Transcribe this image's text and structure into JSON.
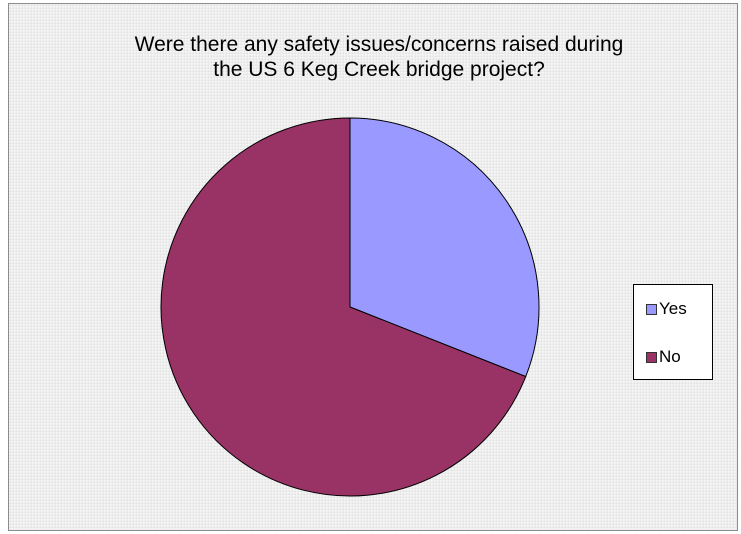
{
  "chart_data": {
    "type": "pie",
    "title": "Were there any safety issues/concerns raised during the US 6 Keg Creek bridge project?",
    "title_lines": [
      "Were there any safety issues/concerns raised during",
      "the US 6 Keg Creek bridge project?"
    ],
    "categories": [
      "Yes",
      "No"
    ],
    "values": [
      31,
      69
    ],
    "colors": [
      "#9999ff",
      "#993366"
    ],
    "start_angle_deg": 0,
    "direction": "clockwise",
    "legend": "right",
    "background": "#efefef"
  }
}
